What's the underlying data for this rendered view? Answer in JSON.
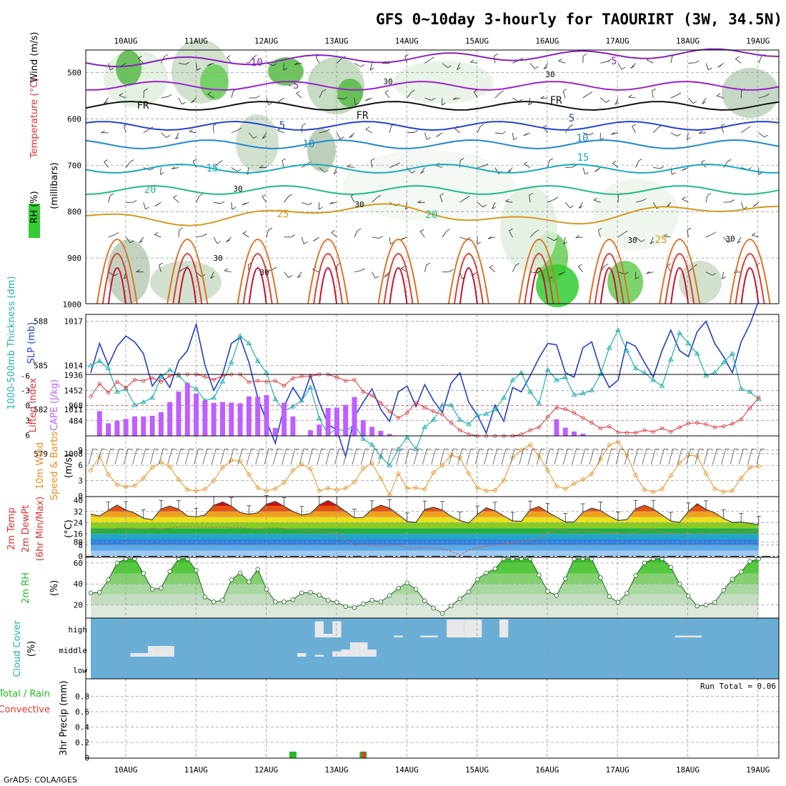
{
  "title": "GFS 0~10day 3-hourly for TAOURIRT (3W, 34.5N)",
  "credit": "GrADS: COLA/IGES",
  "dates": [
    "10AUG",
    "11AUG",
    "12AUG",
    "13AUG",
    "14AUG",
    "15AUG",
    "16AUG",
    "17AUG",
    "18AUG",
    "19AUG"
  ],
  "colors": {
    "rh_green": "#33cc33",
    "cape": "#bf5fff",
    "lifted": "#e03030",
    "wind": "#e89020",
    "slp": "#2040d0",
    "thick": "#20b0b0",
    "cloud_bg": "#6aaed6",
    "cloud_bar": "#e8e8e8",
    "precip_total": "#22bb22",
    "precip_conv": "#ee3333"
  },
  "chart_data": [
    {
      "type": "line",
      "panel": "upper-air cross section",
      "ylabel_parts": [
        "RH (%)",
        "Temperature (°C)",
        "Wind (m/s)"
      ],
      "ylabel2": "(millibars)",
      "y_ticks": [
        500,
        600,
        700,
        800,
        900,
        1000
      ],
      "ylim": [
        1000,
        450
      ],
      "isotherm_labels": [
        "-10",
        "-5",
        "FR",
        "5",
        "10",
        "15",
        "20",
        "25"
      ],
      "rh_labels": [
        "30"
      ]
    },
    {
      "type": "line",
      "panel": "thickness and slp",
      "ylabel_left": "1000-500mb Thickness (dm)",
      "ylabel_right": "SLP (mb)",
      "left_ticks": [
        579,
        582,
        585,
        588
      ],
      "right_ticks": [
        1008,
        1011,
        1014,
        1017
      ],
      "slp": [
        1013.5,
        1015.5,
        1014.0,
        1015.3,
        1016.0,
        1015.6,
        1014.8,
        1012.6,
        1013.4,
        1012.5,
        1014.3,
        1015.0,
        1016.8,
        1014.0,
        1012.3,
        1013.4,
        1015.5,
        1015.9,
        1014.2,
        1011.8,
        1010.2,
        1008.7,
        1011.2,
        1012.5,
        1011.6,
        1013.3,
        1011.5,
        1010.0,
        1009.6,
        1007.8,
        1010.5,
        1011.5,
        1012.4,
        1011.0,
        1010.2,
        1012.2,
        1012.6,
        1011.2,
        1012.7,
        1011.6,
        1010.8,
        1012.8,
        1013.5,
        1011.5,
        1010.6,
        1009.4,
        1011.3,
        1010.2,
        1012.5,
        1012.2,
        1013.3,
        1014.5,
        1015.5,
        1015.4,
        1013.5,
        1013.2,
        1015.2,
        1015.6,
        1013.7,
        1012.5,
        1013.0,
        1015.6,
        1015.3,
        1014.2,
        1013.2,
        1015.0,
        1016.4,
        1015.0,
        1014.6,
        1016.3,
        1017.0,
        1015.5,
        1014.6,
        1013.5,
        1015.6,
        1016.8,
        1018.4
      ],
      "thickness": [
        585.0,
        585.3,
        584.8,
        583.2,
        583.4,
        582.3,
        582.5,
        582.8,
        584.2,
        584.7,
        584.3,
        583.7,
        583.4,
        582.6,
        582.8,
        583.9,
        585.2,
        587.0,
        586.5,
        585.3,
        584.5,
        582.7,
        581.9,
        582.2,
        582.6,
        583.5,
        581.4,
        580.3,
        580.7,
        580.5,
        581.0,
        580.0,
        579.6,
        578.8,
        578.2,
        579.3,
        580.1,
        579.3,
        580.8,
        581.3,
        582.3,
        582.3,
        581.3,
        581.0,
        581.6,
        581.7,
        582.0,
        582.8,
        584.0,
        584.5,
        583.2,
        582.4,
        584.7,
        584.0,
        584.2,
        583.0,
        583.1,
        583.3,
        584.4,
        586.2,
        587.4,
        586.0,
        584.8,
        584.5,
        584.0,
        583.6,
        585.4,
        587.2,
        586.5,
        585.8,
        584.3,
        584.5,
        585.2,
        585.8,
        583.4,
        583.2,
        582.7
      ]
    },
    {
      "type": "bar",
      "panel": "cape and lifted index",
      "ylabel_left": "Lifted Index",
      "ylabel_right": "CAPE (J/kg)",
      "li_ticks": [
        -6,
        -3,
        0,
        3,
        6
      ],
      "cape_ticks": [
        484,
        968,
        1452,
        1936
      ],
      "cape": [
        0,
        790,
        400,
        480,
        540,
        620,
        620,
        640,
        760,
        1080,
        1410,
        1680,
        1350,
        1130,
        1050,
        1080,
        1060,
        1040,
        1260,
        1250,
        1300,
        250,
        1060,
        620,
        0,
        180,
        360,
        890,
        900,
        990,
        1240,
        500,
        290,
        160,
        60,
        0,
        0,
        0,
        0,
        0,
        0,
        0,
        0,
        0,
        0,
        0,
        0,
        0,
        0,
        0,
        0,
        0,
        0,
        530,
        260,
        140,
        70,
        0,
        0,
        0,
        0,
        0,
        0,
        0,
        0,
        0,
        0,
        0,
        0,
        0,
        0,
        0,
        0,
        0,
        0,
        0,
        0
      ],
      "lifted": [
        -1.8,
        -4.4,
        -2.6,
        -4.8,
        -3.6,
        -5.2,
        -5.0,
        -5.6,
        -4.8,
        -6.0,
        -6.8,
        -6.5,
        -6.6,
        -5.8,
        -5.2,
        -6.0,
        -6.3,
        -6.4,
        -4.7,
        -5.0,
        -4.8,
        -5.0,
        -4.0,
        -5.5,
        -5.9,
        -5.9,
        -6.8,
        -6.4,
        -5.7,
        -5.0,
        -5.2,
        -2.8,
        -2.0,
        -0.5,
        1.2,
        2.5,
        1.5,
        -0.6,
        0.4,
        1.2,
        1.8,
        3.5,
        5.0,
        5.8,
        6.2,
        6.5,
        6.5,
        6.5,
        6.5,
        5.8,
        5.0,
        4.4,
        2.3,
        0.4,
        0.7,
        1.5,
        2.5,
        3.5,
        4.6,
        4.2,
        5.4,
        5.5,
        5.5,
        5.0,
        5.3,
        4.6,
        5.3,
        4.4,
        3.6,
        3.5,
        3.8,
        4.4,
        4.2,
        3.7,
        2.8,
        0.5,
        -1.6
      ]
    },
    {
      "type": "line",
      "panel": "10m wind",
      "ylabel": "10m Wind Speed & Barbs (m/s)",
      "y_ticks": [
        0,
        3,
        6,
        9
      ],
      "speed": [
        5.0,
        7.8,
        4.2,
        2.2,
        1.8,
        2.0,
        3.5,
        5.6,
        6.6,
        5.7,
        3.2,
        1.2,
        1.0,
        1.3,
        3.0,
        5.6,
        7.0,
        6.8,
        4.2,
        1.6,
        1.0,
        1.4,
        2.6,
        5.0,
        6.2,
        5.3,
        1.0,
        1.5,
        1.2,
        1.5,
        2.7,
        5.4,
        6.4,
        3.4,
        0.2,
        4.4,
        1.5,
        1.6,
        1.3,
        4.6,
        6.0,
        8.0,
        7.5,
        4.4,
        1.6,
        1.0,
        1.1,
        3.0,
        7.5,
        9.0,
        10.0,
        7.8,
        5.0,
        1.9,
        1.4,
        2.4,
        3.2,
        4.3,
        7.2,
        10.0,
        10.6,
        8.0,
        4.0,
        1.2,
        0.8,
        1.3,
        4.0,
        6.5,
        8.0,
        7.8,
        4.4,
        1.4,
        0.8,
        1.0,
        3.5,
        5.6,
        5.8
      ]
    },
    {
      "type": "area",
      "panel": "2m temperature",
      "ylabel": "2m Temp 2m DewPt (6hr Min/Max) (°C)",
      "y_ticks": [
        0,
        8,
        16,
        24,
        32,
        40
      ],
      "temp": [
        30.2,
        28.8,
        32.8,
        36.6,
        33.0,
        30.8,
        27.2,
        26.0,
        33.8,
        35.8,
        33.6,
        28.8,
        28.2,
        29.5,
        36.4,
        38.8,
        35.9,
        31.2,
        30.0,
        31.0,
        37.2,
        39.2,
        35.7,
        32.0,
        29.5,
        30.5,
        36.7,
        39.8,
        36.5,
        32.0,
        27.5,
        27.7,
        33.5,
        36.5,
        34.4,
        29.8,
        24.8,
        24.2,
        33.3,
        35.0,
        33.0,
        28.5,
        25.5,
        23.7,
        29.8,
        34.7,
        32.5,
        28.8,
        25.2,
        25.0,
        33.3,
        35.5,
        31.5,
        28.0,
        24.5,
        24.5,
        31.4,
        34.4,
        32.7,
        28.6,
        25.5,
        26.2,
        33.8,
        36.5,
        33.8,
        29.5,
        25.2,
        24.2,
        32.0,
        37.5,
        33.5,
        31.0,
        27.0,
        24.2,
        24.5,
        23.5,
        22.5
      ],
      "dew": [
        17.4,
        18.2,
        19.0,
        20.1,
        19.9,
        20.0,
        19.1,
        20.1,
        19.6,
        20.1,
        21.0,
        21.3,
        21.0,
        20.5,
        20.6,
        21.0,
        20.3,
        20.5,
        19.8,
        19.3,
        20.0,
        20.3,
        19.9,
        19.1,
        18.6,
        18.1,
        19.1,
        17.7,
        16.1,
        11.4,
        7.8,
        8.2,
        7.5,
        7.3,
        7.8,
        7.8,
        6.5,
        5.8,
        6.4,
        6.0,
        5.4,
        3.6,
        0.8,
        4.4,
        6.2,
        7.2,
        8.2,
        9.0,
        9.7,
        10.8,
        11.3,
        13.1,
        16.8,
        19.0,
        18.6,
        17.1,
        18.4,
        18.0,
        17.2,
        17.1,
        16.6,
        15.8,
        17.2,
        19.0,
        18.9,
        17.1,
        16.6,
        15.8,
        16.5,
        16.1,
        16.2,
        17.3,
        18.0,
        17.6,
        17.1,
        17.6,
        17.7
      ]
    },
    {
      "type": "area",
      "panel": "2m relative humidity",
      "ylabel": "2m RH (%)",
      "y_ticks": [
        20,
        40,
        60,
        80
      ],
      "rh": [
        31.5,
        32.0,
        44.0,
        60.0,
        73.0,
        79.0,
        50.0,
        35.0,
        36.0,
        52.0,
        72.0,
        76.0,
        53.0,
        27.5,
        23.0,
        24.5,
        44.0,
        50.5,
        42.0,
        54.0,
        35.0,
        23.0,
        23.0,
        25.0,
        31.5,
        32.0,
        29.5,
        24.5,
        22.5,
        18.5,
        17.5,
        21.0,
        24.5,
        23.0,
        29.0,
        36.0,
        41.0,
        35.0,
        24.0,
        17.0,
        12.0,
        19.0,
        26.0,
        32.5,
        44.5,
        50.5,
        54.5,
        76.0,
        79.5,
        81.0,
        92.0,
        48.5,
        33.0,
        29.0,
        45.0,
        68.0,
        80.0,
        82.0,
        46.0,
        28.0,
        22.5,
        31.0,
        48.0,
        60.0,
        66.0,
        70.0,
        56.0,
        40.0,
        28.5,
        19.0,
        20.0,
        22.5,
        34.0,
        44.5,
        51.5,
        61.5,
        68.5
      ]
    },
    {
      "type": "bar",
      "panel": "cloud cover",
      "ylabel": "Cloud Cover (%)",
      "levels": [
        "high",
        "middle",
        "low"
      ],
      "high": [
        0,
        0,
        0,
        0,
        0,
        0,
        0,
        0,
        0,
        0,
        0,
        0,
        0,
        0,
        0,
        0,
        0,
        0,
        0,
        0,
        0,
        0,
        0,
        0,
        0,
        0,
        90,
        20,
        90,
        0,
        0,
        0,
        0,
        0,
        0,
        10,
        0,
        0,
        10,
        10,
        0,
        100,
        100,
        100,
        100,
        0,
        0,
        100,
        0,
        0,
        0,
        0,
        0,
        0,
        0,
        0,
        0,
        0,
        0,
        0,
        0,
        0,
        0,
        0,
        0,
        0,
        0,
        10,
        10,
        10,
        0,
        0,
        0,
        0,
        0,
        0,
        0
      ],
      "middle": [
        0,
        0,
        0,
        0,
        0,
        20,
        20,
        60,
        60,
        60,
        0,
        0,
        0,
        0,
        0,
        0,
        0,
        0,
        0,
        0,
        0,
        0,
        0,
        0,
        20,
        0,
        10,
        0,
        30,
        40,
        80,
        80,
        40,
        0,
        0,
        0,
        0,
        0,
        0,
        0,
        0,
        0,
        0,
        0,
        0,
        0,
        0,
        0,
        0,
        0,
        0,
        0,
        0,
        0,
        0,
        0,
        0,
        0,
        0,
        0,
        0,
        0,
        0,
        0,
        0,
        0,
        0,
        0,
        0,
        0,
        0,
        0,
        0,
        0,
        0,
        0,
        0
      ],
      "low": [
        0,
        0,
        0,
        0,
        0,
        0,
        0,
        0,
        0,
        0,
        0,
        0,
        0,
        0,
        0,
        0,
        0,
        0,
        0,
        0,
        0,
        0,
        0,
        0,
        0,
        0,
        0,
        0,
        0,
        0,
        0,
        0,
        0,
        0,
        0,
        0,
        0,
        0,
        0,
        0,
        0,
        0,
        0,
        0,
        0,
        0,
        0,
        0,
        0,
        0,
        0,
        0,
        0,
        0,
        0,
        0,
        0,
        0,
        0,
        0,
        0,
        0,
        0,
        0,
        0,
        0,
        0,
        0,
        0,
        0,
        0,
        0,
        0,
        0,
        0,
        0,
        0
      ]
    },
    {
      "type": "bar",
      "panel": "3hr precip",
      "ylabel": "3hr Precip (mm)",
      "legend_total": "Total / Rain",
      "legend_conv": "Convective",
      "run_total": "Run Total = 0.06",
      "y_ticks": [
        0,
        0.2,
        0.4,
        0.6,
        0.8
      ],
      "ylim": [
        0,
        1.0
      ],
      "total": [
        0,
        0,
        0,
        0,
        0,
        0,
        0,
        0,
        0,
        0,
        0,
        0,
        0,
        0,
        0,
        0,
        0,
        0,
        0,
        0,
        0,
        0,
        0,
        0.03,
        0,
        0,
        0,
        0,
        0,
        0,
        0,
        0.03,
        0,
        0,
        0,
        0,
        0,
        0,
        0,
        0,
        0,
        0,
        0,
        0,
        0,
        0,
        0,
        0,
        0,
        0,
        0,
        0,
        0,
        0,
        0,
        0,
        0,
        0,
        0,
        0,
        0,
        0,
        0,
        0,
        0,
        0,
        0,
        0,
        0,
        0,
        0,
        0,
        0,
        0,
        0,
        0,
        0
      ],
      "convective": [
        0,
        0,
        0,
        0,
        0,
        0,
        0,
        0,
        0,
        0,
        0,
        0,
        0,
        0,
        0,
        0,
        0,
        0,
        0,
        0,
        0,
        0,
        0,
        0,
        0,
        0,
        0,
        0,
        0,
        0,
        0,
        0.03,
        0,
        0,
        0,
        0,
        0,
        0,
        0,
        0,
        0,
        0,
        0,
        0,
        0,
        0,
        0,
        0,
        0,
        0,
        0,
        0,
        0,
        0,
        0,
        0,
        0,
        0,
        0,
        0,
        0,
        0,
        0,
        0,
        0,
        0,
        0,
        0,
        0,
        0,
        0,
        0,
        0,
        0,
        0,
        0,
        0
      ]
    }
  ]
}
